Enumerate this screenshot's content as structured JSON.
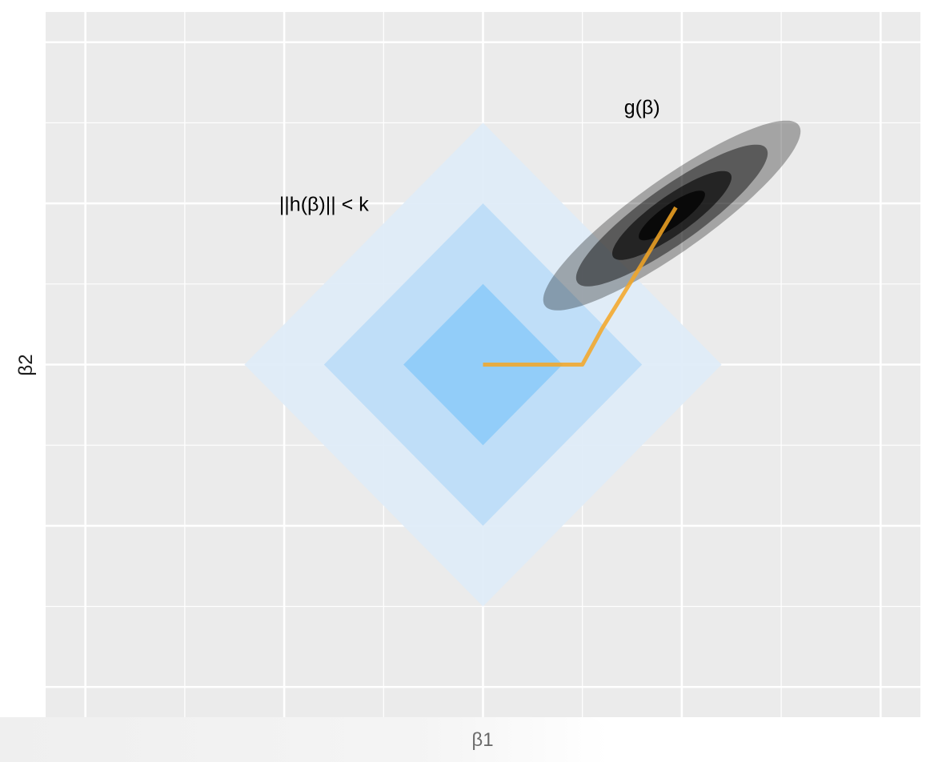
{
  "chart_data": {
    "type": "contour",
    "title": "",
    "xlabel": "β1",
    "ylabel": "β2",
    "xlim": [
      -2.2,
      2.2
    ],
    "ylim": [
      -1.75,
      1.75
    ],
    "grid": true,
    "x_major_ticks": [
      -2,
      -1,
      0,
      1,
      2
    ],
    "x_minor_ticks": [
      -1.5,
      -0.5,
      0.5,
      1.5
    ],
    "y_major_ticks": [
      -1.6,
      -0.8,
      0,
      0.8,
      1.6
    ],
    "y_minor_ticks": [
      -1.2,
      -0.4,
      0.4,
      1.2
    ],
    "constraint_regions": {
      "name": "||h(β)|| < k",
      "shape": "diamond",
      "center": [
        0,
        0
      ],
      "radii": [
        1.2,
        0.8,
        0.4
      ],
      "colors": [
        "#deebf7",
        "#bcdcf7",
        "#8ecbf8"
      ]
    },
    "objective_contours": {
      "name": "g(β)",
      "shape": "ellipse",
      "center": [
        0.95,
        0.74
      ],
      "angle_deg": 35,
      "levels": [
        {
          "semi_major": 0.78,
          "semi_minor": 0.18,
          "color": "#000000",
          "opacity": 0.3
        },
        {
          "semi_major": 0.58,
          "semi_minor": 0.14,
          "color": "#000000",
          "opacity": 0.45
        },
        {
          "semi_major": 0.36,
          "semi_minor": 0.095,
          "color": "#000000",
          "opacity": 0.6
        },
        {
          "semi_major": 0.2,
          "semi_minor": 0.055,
          "color": "#000000",
          "opacity": 0.75
        }
      ]
    },
    "path": {
      "color": "#f5a623",
      "points": [
        [
          0,
          0
        ],
        [
          0.5,
          0
        ],
        [
          0.6,
          0.18
        ],
        [
          0.8,
          0.5
        ],
        [
          0.97,
          0.78
        ]
      ]
    },
    "annotations": [
      {
        "text": "g(β)",
        "x": 0.8,
        "y": 1.27
      },
      {
        "text": "||h(β)|| < k",
        "x": -0.8,
        "y": 0.79
      }
    ]
  }
}
